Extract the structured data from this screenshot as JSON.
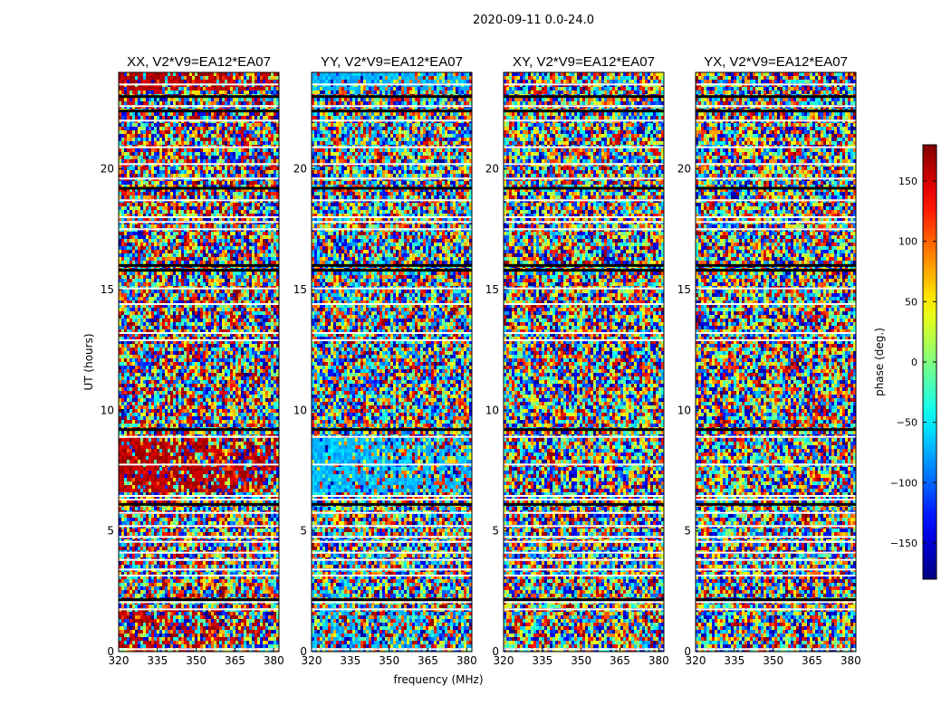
{
  "suptitle": "2020-09-11 0.0-24.0",
  "chart_data": {
    "type": "heatmap",
    "shared_xlabel": "frequency (MHz)",
    "shared_ylabel": "UT (hours)",
    "xlim": [
      320,
      382
    ],
    "ylim": [
      0,
      24
    ],
    "x_ticks": [
      "320",
      "335",
      "350",
      "365",
      "380"
    ],
    "x_tick_values": [
      320,
      335,
      350,
      365,
      380
    ],
    "y_ticks": [
      "0",
      "5",
      "10",
      "15",
      "20"
    ],
    "y_tick_values": [
      0,
      5,
      10,
      15,
      20
    ],
    "panels": [
      {
        "title": "XX, V2*V9=EA12*EA07",
        "bias": 160
      },
      {
        "title": "YY, V2*V9=EA12*EA07",
        "bias": -70
      },
      {
        "title": "XY, V2*V9=EA12*EA07",
        "bias": 0
      },
      {
        "title": "YX, V2*V9=EA12*EA07",
        "bias": 0
      }
    ],
    "colorbar": {
      "label": "phase (deg.)",
      "range": [
        -180,
        180
      ],
      "ticks": [
        "150",
        "100",
        "50",
        "0",
        "−50",
        "−100",
        "−150"
      ],
      "tick_values": [
        150,
        100,
        50,
        0,
        -50,
        -100,
        -150
      ],
      "colormap": "jet"
    },
    "flagged_white_hours": [
      0.1,
      1.75,
      2.05,
      3.15,
      3.4,
      3.8,
      4.1,
      4.55,
      4.75,
      5.2,
      5.75,
      6.3,
      6.45,
      7.75,
      8.9,
      12.9,
      13.2,
      14.4,
      15.05,
      17.5,
      17.8,
      18.0,
      18.7,
      19.6,
      20.2,
      20.9,
      22.0,
      22.6,
      23.5
    ],
    "flagged_black_hours": [
      2.15,
      6.1,
      9.2,
      15.8,
      16.0,
      19.2,
      22.4,
      23.0
    ]
  }
}
